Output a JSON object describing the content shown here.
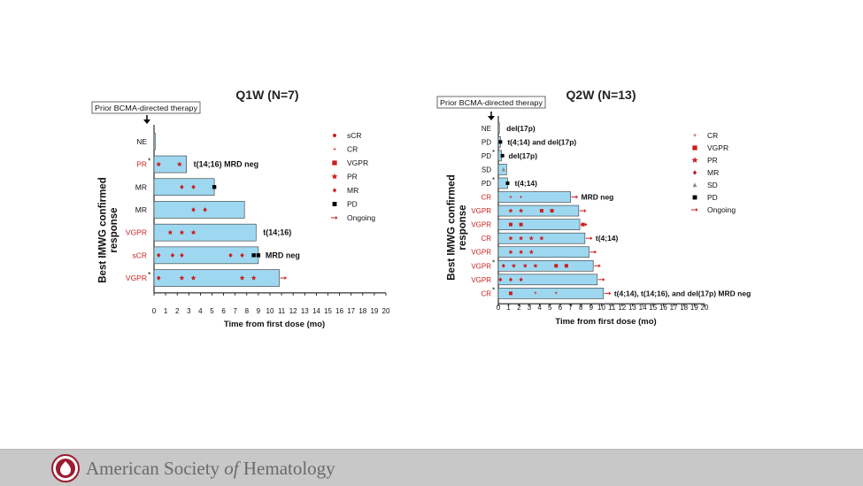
{
  "footer": {
    "brand_pre": "American Society ",
    "brand_of": "of",
    "brand_post": " Hematology"
  },
  "colors": {
    "bar": "#9ed8f0",
    "marker": "#cc1f1f",
    "pd": "#000000",
    "sd": "#888888",
    "ongoing": "#cc1f1f"
  },
  "legend_q1w": [
    {
      "label": "sCR",
      "icon": "circle"
    },
    {
      "label": "CR",
      "icon": "plus"
    },
    {
      "label": "VGPR",
      "icon": "square"
    },
    {
      "label": "PR",
      "icon": "star"
    },
    {
      "label": "MR",
      "icon": "diamond"
    },
    {
      "label": "PD",
      "icon": "square-black"
    },
    {
      "label": "Ongoing",
      "icon": "arrow"
    }
  ],
  "legend_q2w": [
    {
      "label": "CR",
      "icon": "plus"
    },
    {
      "label": "VGPR",
      "icon": "square"
    },
    {
      "label": "PR",
      "icon": "star"
    },
    {
      "label": "MR",
      "icon": "diamond"
    },
    {
      "label": "SD",
      "icon": "triangle"
    },
    {
      "label": "PD",
      "icon": "square-black"
    },
    {
      "label": "Ongoing",
      "icon": "arrow"
    }
  ],
  "chart_data": [
    {
      "type": "bar",
      "orientation": "horizontal",
      "title": "Q1W (N=7)",
      "prior_label": "Prior BCMA-directed therapy",
      "xlabel": "Time from first dose (mo)",
      "ylabel": "Best IMWG confirmed response",
      "xlim": [
        0,
        20
      ],
      "xticks": [
        0,
        1,
        2,
        3,
        4,
        5,
        6,
        7,
        8,
        9,
        10,
        11,
        12,
        13,
        14,
        15,
        16,
        17,
        18,
        19,
        20
      ],
      "rows": [
        {
          "response": "NE",
          "red": false,
          "prior": false,
          "duration": 0.1,
          "annotation": "",
          "ongoing": false,
          "markers": []
        },
        {
          "response": "PR",
          "red": true,
          "prior": true,
          "duration": 2.8,
          "annotation": "t(14;16)   MRD neg",
          "ongoing": false,
          "markers": [
            {
              "t": 0.4,
              "type": "PR"
            },
            {
              "t": 2.2,
              "type": "PR"
            }
          ]
        },
        {
          "response": "MR",
          "red": false,
          "prior": false,
          "duration": 5.2,
          "annotation": "",
          "ongoing": false,
          "markers": [
            {
              "t": 2.4,
              "type": "MR"
            },
            {
              "t": 3.4,
              "type": "MR"
            },
            {
              "t": 5.2,
              "type": "PD"
            }
          ]
        },
        {
          "response": "MR",
          "red": false,
          "prior": false,
          "duration": 7.8,
          "annotation": "",
          "ongoing": false,
          "markers": [
            {
              "t": 3.4,
              "type": "MR"
            },
            {
              "t": 4.4,
              "type": "MR"
            }
          ]
        },
        {
          "response": "VGPR",
          "red": true,
          "prior": false,
          "duration": 8.8,
          "annotation": "t(14;16)",
          "ongoing": false,
          "markers": [
            {
              "t": 1.4,
              "type": "PR"
            },
            {
              "t": 2.4,
              "type": "PR"
            },
            {
              "t": 3.4,
              "type": "PR"
            }
          ]
        },
        {
          "response": "sCR",
          "red": true,
          "prior": false,
          "duration": 9.0,
          "annotation": "MRD neg",
          "ongoing": false,
          "markers": [
            {
              "t": 0.4,
              "type": "MR"
            },
            {
              "t": 1.6,
              "type": "MR"
            },
            {
              "t": 2.4,
              "type": "MR"
            },
            {
              "t": 6.6,
              "type": "MR"
            },
            {
              "t": 7.6,
              "type": "MR"
            },
            {
              "t": 8.6,
              "type": "PD"
            },
            {
              "t": 9.0,
              "type": "PD"
            }
          ]
        },
        {
          "response": "VGPR",
          "red": true,
          "prior": true,
          "duration": 10.8,
          "annotation": "",
          "ongoing": true,
          "markers": [
            {
              "t": 0.4,
              "type": "MR"
            },
            {
              "t": 2.4,
              "type": "PR"
            },
            {
              "t": 3.4,
              "type": "PR"
            },
            {
              "t": 7.6,
              "type": "PR"
            },
            {
              "t": 8.6,
              "type": "PR"
            }
          ]
        }
      ]
    },
    {
      "type": "bar",
      "orientation": "horizontal",
      "title": "Q2W (N=13)",
      "prior_label": "Prior BCMA-directed therapy",
      "xlabel": "Time from first dose (mo)",
      "ylabel": "Best IMWG confirmed response",
      "xlim": [
        0,
        20
      ],
      "xticks": [
        0,
        1,
        2,
        3,
        4,
        5,
        6,
        7,
        8,
        9,
        10,
        11,
        12,
        13,
        14,
        15,
        16,
        17,
        18,
        19,
        20
      ],
      "rows": [
        {
          "response": "NE",
          "red": false,
          "prior": false,
          "duration": 0.1,
          "annotation": "del(17p)",
          "ongoing": false,
          "markers": []
        },
        {
          "response": "PD",
          "red": false,
          "prior": false,
          "duration": 0.2,
          "annotation": "t(4;14) and del(17p)",
          "ongoing": false,
          "markers": [
            {
              "t": 0.2,
              "type": "PD"
            }
          ]
        },
        {
          "response": "PD",
          "red": false,
          "prior": true,
          "duration": 0.3,
          "annotation": "del(17p)",
          "ongoing": false,
          "markers": [
            {
              "t": 0.4,
              "type": "PD"
            }
          ]
        },
        {
          "response": "SD",
          "red": false,
          "prior": false,
          "duration": 0.8,
          "annotation": "",
          "ongoing": false,
          "markers": [
            {
              "t": 0.5,
              "type": "SD"
            }
          ]
        },
        {
          "response": "PD",
          "red": false,
          "prior": true,
          "duration": 0.9,
          "annotation": "t(4;14)",
          "ongoing": false,
          "markers": [
            {
              "t": 0.9,
              "type": "PD"
            }
          ]
        },
        {
          "response": "CR",
          "red": true,
          "prior": false,
          "duration": 7.0,
          "annotation": "MRD neg",
          "ongoing": true,
          "markers": [
            {
              "t": 1.2,
              "type": "CR"
            },
            {
              "t": 2.2,
              "type": "CR"
            }
          ]
        },
        {
          "response": "VGPR",
          "red": true,
          "prior": false,
          "duration": 7.8,
          "annotation": "",
          "ongoing": true,
          "markers": [
            {
              "t": 1.2,
              "type": "PR"
            },
            {
              "t": 2.2,
              "type": "PR"
            },
            {
              "t": 4.2,
              "type": "VGPR"
            },
            {
              "t": 5.2,
              "type": "VGPR"
            }
          ]
        },
        {
          "response": "VGPR",
          "red": true,
          "prior": false,
          "duration": 7.9,
          "annotation": "",
          "ongoing": true,
          "markers": [
            {
              "t": 1.2,
              "type": "VGPR"
            },
            {
              "t": 2.2,
              "type": "VGPR"
            },
            {
              "t": 8.2,
              "type": "VGPR"
            }
          ]
        },
        {
          "response": "CR",
          "red": true,
          "prior": false,
          "duration": 8.4,
          "annotation": "t(4;14)",
          "ongoing": true,
          "markers": [
            {
              "t": 1.2,
              "type": "PR"
            },
            {
              "t": 2.2,
              "type": "PR"
            },
            {
              "t": 3.2,
              "type": "PR"
            },
            {
              "t": 4.2,
              "type": "PR"
            }
          ]
        },
        {
          "response": "VGPR",
          "red": true,
          "prior": false,
          "duration": 8.8,
          "annotation": "",
          "ongoing": true,
          "markers": [
            {
              "t": 1.2,
              "type": "PR"
            },
            {
              "t": 2.2,
              "type": "PR"
            },
            {
              "t": 3.2,
              "type": "PR"
            }
          ]
        },
        {
          "response": "VGPR",
          "red": true,
          "prior": true,
          "duration": 9.2,
          "annotation": "",
          "ongoing": true,
          "markers": [
            {
              "t": 0.5,
              "type": "MR"
            },
            {
              "t": 1.5,
              "type": "PR"
            },
            {
              "t": 2.6,
              "type": "PR"
            },
            {
              "t": 3.6,
              "type": "PR"
            },
            {
              "t": 5.6,
              "type": "VGPR"
            },
            {
              "t": 6.6,
              "type": "VGPR"
            }
          ]
        },
        {
          "response": "VGPR",
          "red": true,
          "prior": false,
          "duration": 9.6,
          "annotation": "",
          "ongoing": true,
          "markers": [
            {
              "t": 0.2,
              "type": "MR"
            },
            {
              "t": 1.2,
              "type": "MR"
            },
            {
              "t": 2.2,
              "type": "MR"
            }
          ]
        },
        {
          "response": "CR",
          "red": true,
          "prior": true,
          "duration": 10.2,
          "annotation": "t(4;14), t(14;16), and del(17p)   MRD neg",
          "ongoing": true,
          "markers": [
            {
              "t": 1.2,
              "type": "VGPR"
            },
            {
              "t": 3.6,
              "type": "CR"
            },
            {
              "t": 5.6,
              "type": "CR"
            }
          ]
        }
      ]
    }
  ]
}
